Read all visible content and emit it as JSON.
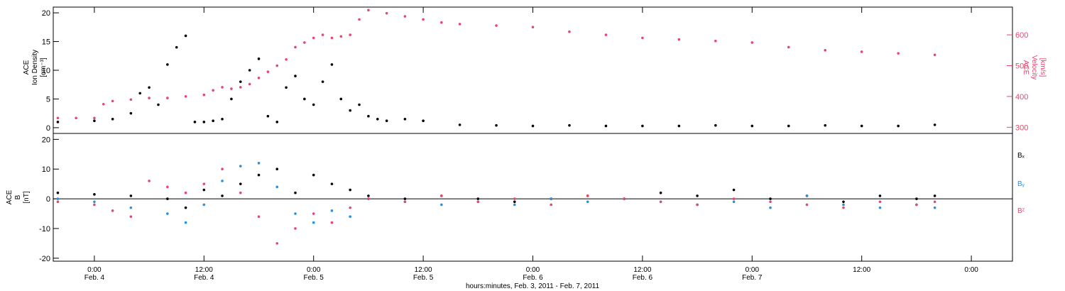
{
  "footer": {
    "xlabel": "hours:minutes, Feb.  3, 2011 - Feb.  7, 2011"
  },
  "colors": {
    "black": "#000000",
    "pink": "#e8466e",
    "blue": "#2a8fe0"
  },
  "chart_data": [
    {
      "type": "scatter",
      "panel": "top",
      "left_ylabel": [
        "ACE",
        "Ion Density",
        "[cm⁻³]"
      ],
      "right_ylabel": [
        "ACE",
        "Velocity",
        "[km/s]"
      ],
      "left_ylim": [
        -1,
        21
      ],
      "left_ticks": [
        0,
        5,
        10,
        15,
        20
      ],
      "right_ylim": [
        280,
        690
      ],
      "right_ticks": [
        300,
        400,
        500,
        600
      ],
      "series": [
        {
          "axis": "left",
          "color": "#000000",
          "x": [
            -4,
            0,
            2,
            4,
            5,
            6,
            7,
            8,
            9,
            10,
            11,
            12,
            13,
            14,
            15,
            16,
            17,
            18,
            19,
            20,
            21,
            22,
            23,
            24,
            25,
            26,
            27,
            28,
            29,
            30,
            31,
            32,
            34,
            36,
            40,
            44,
            48,
            52,
            56,
            60,
            64,
            68,
            72,
            76,
            80,
            84,
            88,
            92
          ],
          "y": [
            1,
            1.2,
            1.5,
            2.5,
            6,
            7,
            4,
            11,
            14,
            16,
            1,
            1,
            1.2,
            1.5,
            5,
            8,
            10,
            12,
            2,
            1,
            7,
            9,
            5,
            4,
            8,
            11,
            5,
            3,
            4,
            2,
            1.5,
            1.2,
            1.5,
            1.2,
            0.5,
            0.4,
            0.3,
            0.4,
            0.3,
            0.3,
            0.3,
            0.4,
            0.3,
            0.3,
            0.4,
            0.3,
            0.3,
            0.5
          ]
        },
        {
          "axis": "right",
          "color": "#e8466e",
          "x": [
            -4,
            -2,
            0,
            1,
            2,
            4,
            6,
            8,
            10,
            12,
            13,
            14,
            15,
            16,
            17,
            18,
            19,
            20,
            21,
            22,
            23,
            24,
            25,
            26,
            27,
            28,
            29,
            30,
            32,
            34,
            36,
            38,
            40,
            44,
            48,
            52,
            56,
            60,
            64,
            68,
            72,
            76,
            80,
            84,
            88,
            92
          ],
          "y": [
            330,
            330,
            330,
            375,
            385,
            390,
            395,
            395,
            400,
            405,
            420,
            430,
            425,
            430,
            440,
            460,
            480,
            500,
            520,
            560,
            575,
            590,
            600,
            590,
            595,
            600,
            650,
            680,
            670,
            660,
            650,
            640,
            635,
            630,
            625,
            610,
            600,
            590,
            585,
            580,
            575,
            560,
            550,
            545,
            540,
            535
          ]
        }
      ]
    },
    {
      "type": "scatter",
      "panel": "bottom",
      "left_ylabel": [
        "ACE",
        "B",
        "[nT]"
      ],
      "ylim": [
        -21,
        22
      ],
      "yticks": [
        -20,
        -10,
        0,
        10,
        20
      ],
      "legend": [
        "Bₓ",
        "Bᵧ",
        "Bᶻ"
      ],
      "series": [
        {
          "name": "Bx",
          "color": "#000000",
          "x": [
            -4,
            0,
            4,
            8,
            10,
            12,
            14,
            16,
            18,
            20,
            22,
            24,
            26,
            28,
            30,
            34,
            38,
            42,
            46,
            50,
            54,
            58,
            62,
            66,
            70,
            74,
            78,
            82,
            86,
            90,
            92
          ],
          "y": [
            2,
            1.5,
            1,
            0,
            -3,
            3,
            1,
            5,
            8,
            10,
            2,
            8,
            5,
            3,
            1,
            0,
            1,
            0,
            -1,
            0,
            1,
            0,
            2,
            1,
            3,
            0,
            1,
            -1,
            1,
            0,
            1
          ]
        },
        {
          "name": "By",
          "color": "#2a8fe0",
          "x": [
            -4,
            0,
            4,
            8,
            10,
            12,
            14,
            16,
            18,
            20,
            22,
            24,
            26,
            28,
            30,
            34,
            38,
            42,
            46,
            50,
            54,
            58,
            62,
            66,
            70,
            74,
            78,
            82,
            86,
            90,
            92
          ],
          "y": [
            0,
            -1,
            -3,
            -5,
            -8,
            -2,
            6,
            11,
            12,
            4,
            -5,
            -8,
            -4,
            -6,
            0,
            -1,
            -2,
            -1,
            -2,
            0,
            -1,
            0,
            -1,
            -2,
            -1,
            -3,
            1,
            -2,
            -3,
            -2,
            -3
          ]
        },
        {
          "name": "Bz",
          "color": "#e8466e",
          "x": [
            -4,
            0,
            2,
            4,
            6,
            8,
            10,
            12,
            14,
            16,
            18,
            20,
            22,
            24,
            26,
            28,
            30,
            34,
            38,
            42,
            46,
            50,
            54,
            58,
            62,
            66,
            70,
            74,
            78,
            82,
            86,
            90,
            92
          ],
          "y": [
            -1,
            -2,
            -4,
            -6,
            6,
            4,
            2,
            5,
            10,
            2,
            -6,
            -15,
            -10,
            -5,
            -8,
            -3,
            0,
            -1,
            1,
            -1,
            0,
            -2,
            1,
            0,
            -1,
            -2,
            0,
            -1,
            -2,
            -3,
            -1,
            -2,
            -1
          ]
        }
      ]
    }
  ],
  "x_axis": {
    "xlim": [
      -4.5,
      100.5
    ],
    "ticks": [
      0,
      12,
      24,
      36,
      48,
      60,
      72,
      84,
      96
    ],
    "tick_labels_time": [
      "0:00",
      "12:00",
      "0:00",
      "12:00",
      "0:00",
      "12:00",
      "0:00",
      "12:00",
      "0:00"
    ],
    "tick_labels_date": [
      "Feb. 4",
      "Feb. 4",
      "Feb. 5",
      "Feb. 5",
      "Feb. 6",
      "Feb. 6",
      "Feb. 7",
      "",
      ""
    ]
  }
}
